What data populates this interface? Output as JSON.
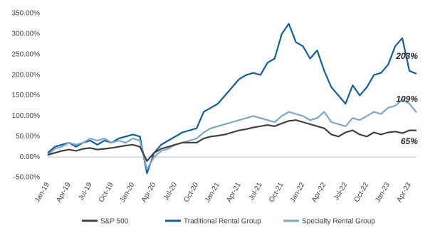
{
  "chart_data": {
    "type": "line",
    "categories": [
      "Jan-19",
      null,
      null,
      "Apr-19",
      null,
      null,
      "Jul-19",
      null,
      null,
      "Oct-19",
      null,
      null,
      "Jan-20",
      null,
      null,
      "Apr-20",
      null,
      null,
      "Jul-20",
      null,
      null,
      "Oct-20",
      null,
      null,
      "Jan-21",
      null,
      null,
      "Apr-21",
      null,
      null,
      "Jul-21",
      null,
      null,
      "Oct-21",
      null,
      null,
      "Jan-22",
      null,
      null,
      "Apr-22",
      null,
      null,
      "Jul-22",
      null,
      null,
      "Oct-22",
      null,
      null,
      "Jan-23",
      null,
      null,
      "Apr-23",
      null
    ],
    "series": [
      {
        "name": "S&P 500",
        "color": "#404040",
        "values": [
          5,
          10,
          15,
          18,
          15,
          20,
          22,
          18,
          20,
          22,
          25,
          28,
          30,
          25,
          -10,
          10,
          20,
          25,
          30,
          35,
          35,
          35,
          45,
          50,
          52,
          55,
          60,
          65,
          68,
          72,
          75,
          78,
          75,
          82,
          88,
          90,
          85,
          80,
          75,
          70,
          55,
          50,
          60,
          65,
          55,
          50,
          60,
          55,
          60,
          62,
          58,
          65,
          65
        ]
      },
      {
        "name": "Traditional Rental Group",
        "color": "#0f5fa3",
        "values": [
          10,
          25,
          30,
          35,
          25,
          35,
          40,
          30,
          40,
          35,
          45,
          50,
          55,
          50,
          -40,
          10,
          30,
          40,
          50,
          60,
          65,
          70,
          110,
          120,
          130,
          150,
          170,
          190,
          200,
          205,
          200,
          230,
          240,
          300,
          325,
          280,
          270,
          240,
          260,
          210,
          170,
          150,
          130,
          175,
          150,
          170,
          200,
          205,
          225,
          270,
          290,
          210,
          203
        ]
      },
      {
        "name": "Specialty Rental Group",
        "color": "#7ba7c9",
        "values": [
          5,
          20,
          25,
          35,
          30,
          35,
          45,
          40,
          45,
          35,
          40,
          35,
          45,
          40,
          -30,
          0,
          15,
          20,
          30,
          35,
          40,
          45,
          60,
          70,
          75,
          80,
          85,
          90,
          95,
          100,
          95,
          90,
          85,
          100,
          110,
          105,
          100,
          90,
          95,
          110,
          85,
          80,
          75,
          95,
          90,
          100,
          110,
          105,
          120,
          125,
          140,
          130,
          109
        ]
      }
    ],
    "annotations": [
      "203%",
      "109%",
      "65%"
    ],
    "ylim": [
      -50,
      350
    ],
    "yticks": [
      {
        "value": -50,
        "label": "-50.00%"
      },
      {
        "value": 0,
        "label": "0.00%"
      },
      {
        "value": 50,
        "label": "50.00%"
      },
      {
        "value": 100,
        "label": "100.00%"
      },
      {
        "value": 150,
        "label": "150.00%"
      },
      {
        "value": 200,
        "label": "200.00%"
      },
      {
        "value": 250,
        "label": "250.00%"
      },
      {
        "value": 300,
        "label": "300.00%"
      },
      {
        "value": 350,
        "label": "350.00%"
      }
    ],
    "grid": false,
    "legend": "bottom"
  }
}
